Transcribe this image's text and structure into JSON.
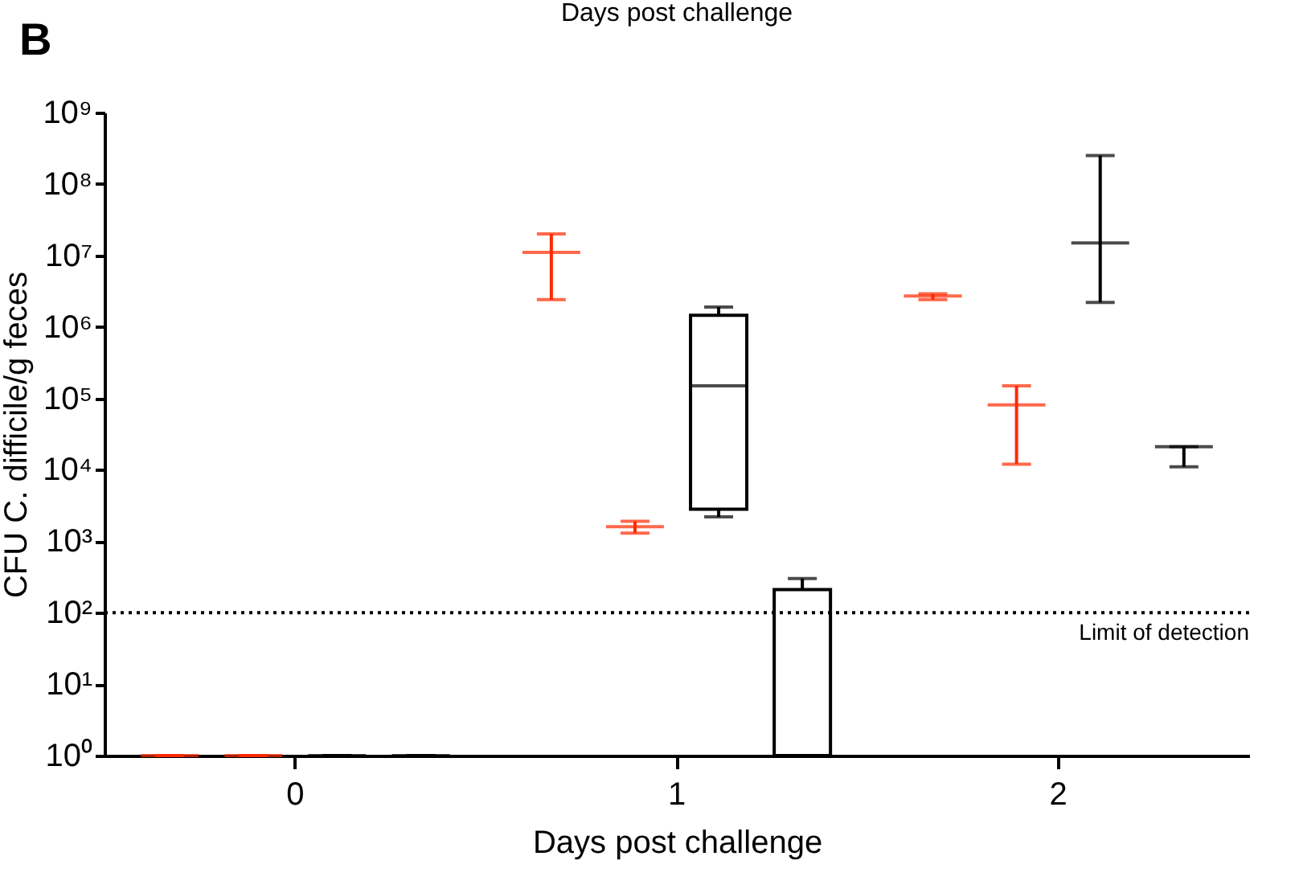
{
  "chart_data": {
    "type": "box",
    "title": "Days post challenge",
    "xlabel": "Days post challenge",
    "ylabel": "CFU C. difficile/g feces",
    "annotations": [
      "B"
    ],
    "categories": [
      "0",
      "1",
      "2"
    ],
    "log": "y",
    "ylim": [
      1,
      1000000000
    ],
    "yticks": [
      {
        "value": 1,
        "label": "10⁰"
      },
      {
        "value": 10,
        "label": "10¹"
      },
      {
        "value": 100,
        "label": "10²"
      },
      {
        "value": 1000,
        "label": "10³"
      },
      {
        "value": 10000,
        "label": "10⁴"
      },
      {
        "value": 100000,
        "label": "10⁵"
      },
      {
        "value": 1000000,
        "label": "10⁶"
      },
      {
        "value": 10000000,
        "label": "10⁷"
      },
      {
        "value": 100000000,
        "label": "10⁸"
      },
      {
        "value": 1000000000,
        "label": "10⁹"
      }
    ],
    "series": [
      {
        "color": "#ff2a00",
        "boxes": [
          {
            "low": 1,
            "q1": 1,
            "median": 1,
            "q3": 1,
            "high": 1
          },
          {
            "low": 2400000,
            "q1": 11000000,
            "median": 11000000,
            "q3": 11000000,
            "high": 20000000
          },
          {
            "low": 2400000,
            "q1": 2700000,
            "median": 2700000,
            "q3": 2700000,
            "high": 2900000
          }
        ]
      },
      {
        "color": "#ff2a00",
        "boxes": [
          {
            "low": 1,
            "q1": 1,
            "median": 1,
            "q3": 1,
            "high": 1
          },
          {
            "low": 1300,
            "q1": 1600,
            "median": 1600,
            "q3": 1600,
            "high": 1900
          },
          {
            "low": 12000,
            "q1": 81000,
            "median": 81000,
            "q3": 81000,
            "high": 150000
          }
        ]
      },
      {
        "color": "#000000",
        "boxes": [
          {
            "low": 1,
            "q1": 1,
            "median": 1,
            "q3": 1,
            "high": 1
          },
          {
            "low": 2200,
            "q1": 2800,
            "median": 150000,
            "q3": 1450000,
            "high": 1900000
          },
          {
            "low": 2200000,
            "q1": 15000000,
            "median": 15000000,
            "q3": 15000000,
            "high": 250000000
          }
        ]
      },
      {
        "color": "#000000",
        "boxes": [
          {
            "low": 1,
            "q1": 1,
            "median": 1,
            "q3": 1,
            "high": 1
          },
          {
            "low": 1,
            "q1": 1,
            "median": 1,
            "q3": 210,
            "high": 300
          },
          {
            "low": 11000,
            "q1": 21000,
            "median": 21000,
            "q3": 21000,
            "high": 21000
          }
        ]
      }
    ],
    "ref_lines": [
      {
        "axis": "y",
        "value": 100,
        "label": "Limit of detection",
        "line_style": "dotted"
      }
    ],
    "grid": false,
    "legend": false
  }
}
